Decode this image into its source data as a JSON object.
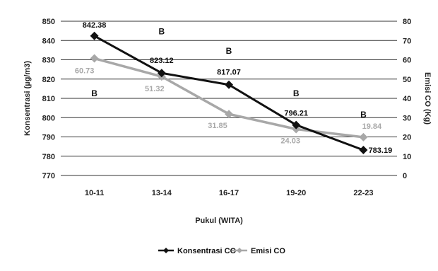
{
  "chart_data": {
    "type": "line",
    "categories": [
      "10-11",
      "13-14",
      "16-17",
      "19-20",
      "22-23"
    ],
    "xlabel": "Pukul (WITA)",
    "ylabel": "Konsentrasi (µg/m3)",
    "y2label": "Emisi CO (Kg)",
    "ylim": [
      770,
      850
    ],
    "yticks": [
      770,
      780,
      790,
      800,
      810,
      820,
      830,
      840,
      850
    ],
    "y2lim": [
      0,
      80
    ],
    "y2ticks": [
      0,
      10,
      20,
      30,
      40,
      50,
      60,
      70,
      80
    ],
    "grid": true,
    "legend_placement": "bottom",
    "series": [
      {
        "name": "Konsentrasi CO",
        "axis": "left",
        "color": "#111111",
        "marker": "diamond",
        "values": [
          842.38,
          823.12,
          817.07,
          796.21,
          783.19
        ],
        "labels": [
          "842.38",
          "823.12",
          "817.07",
          "796.21",
          "783.19"
        ]
      },
      {
        "name": "Emisi CO",
        "axis": "right",
        "color": "#a8a8a8",
        "marker": "diamond",
        "values": [
          60.73,
          51.32,
          31.85,
          24.03,
          19.84
        ],
        "labels": [
          "60.73",
          "51.32",
          "31.85",
          "24.03",
          "19.84"
        ]
      }
    ],
    "annotations": [
      {
        "text": "B",
        "x": "10-11",
        "y": 813
      },
      {
        "text": "B",
        "x": "13-14",
        "y": 845
      },
      {
        "text": "B",
        "x": "16-17",
        "y": 835
      },
      {
        "text": "B",
        "x": "19-20",
        "y": 813
      },
      {
        "text": "B",
        "x": "22-23",
        "y": 802
      }
    ]
  }
}
